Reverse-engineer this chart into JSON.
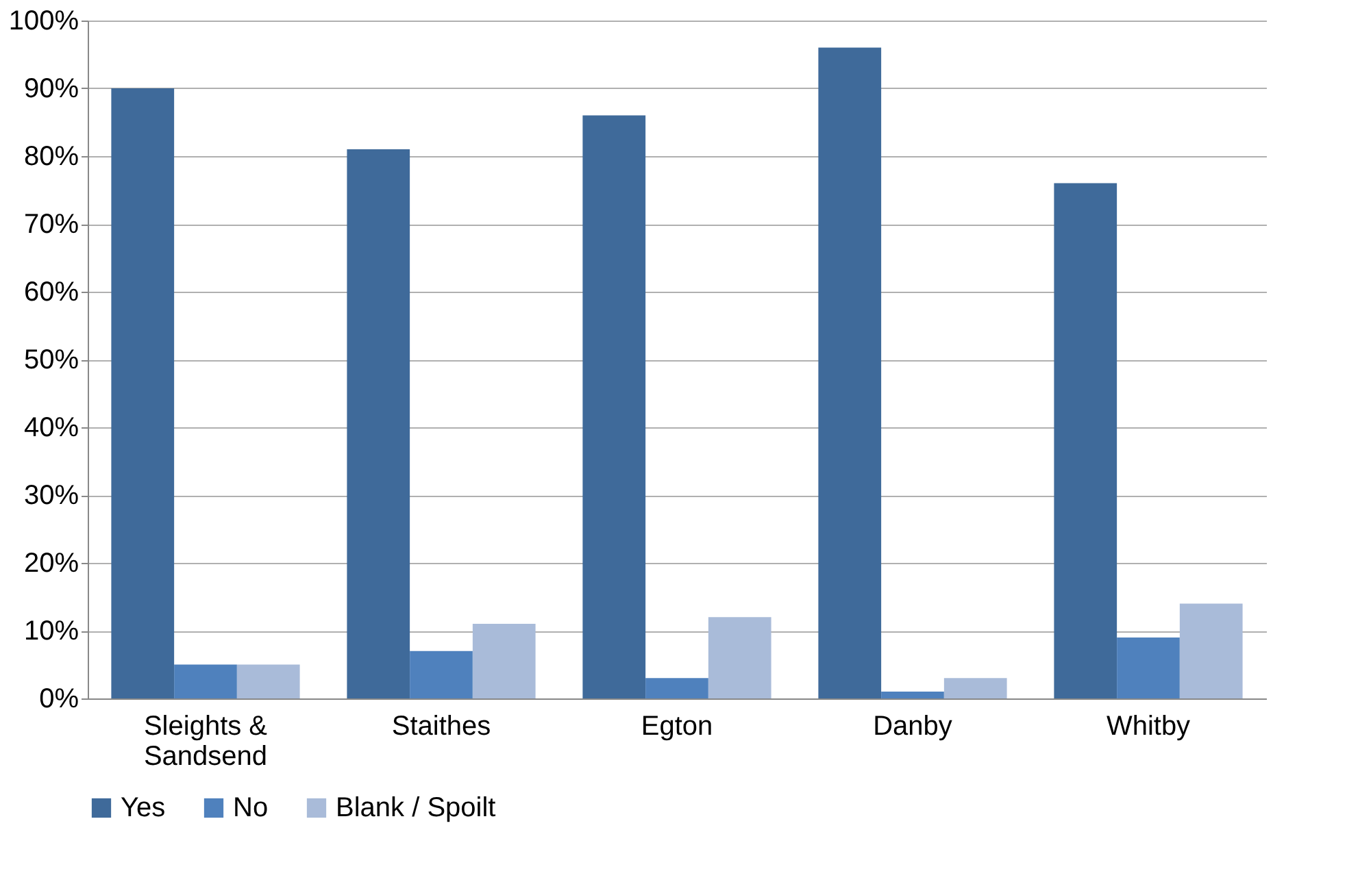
{
  "chart_data": {
    "type": "bar",
    "categories": [
      "Sleights & Sandsend",
      "Staithes",
      "Egton",
      "Danby",
      "Whitby"
    ],
    "series": [
      {
        "name": "Yes",
        "color": "#3f6a9a",
        "values": [
          90,
          81,
          86,
          96,
          76
        ]
      },
      {
        "name": "No",
        "color": "#4f81bd",
        "values": [
          5,
          7,
          3,
          1,
          9
        ]
      },
      {
        "name": "Blank / Spoilt",
        "color": "#a9bbd9",
        "values": [
          5,
          11,
          12,
          3,
          14
        ]
      }
    ],
    "ylim": [
      0,
      100
    ],
    "yticks": [
      {
        "value": 0,
        "label": "0%"
      },
      {
        "value": 10,
        "label": "10%"
      },
      {
        "value": 20,
        "label": "20%"
      },
      {
        "value": 30,
        "label": "30%"
      },
      {
        "value": 40,
        "label": "40%"
      },
      {
        "value": 50,
        "label": "50%"
      },
      {
        "value": 60,
        "label": "60%"
      },
      {
        "value": 70,
        "label": "70%"
      },
      {
        "value": 80,
        "label": "80%"
      },
      {
        "value": 90,
        "label": "90%"
      },
      {
        "value": 100,
        "label": "100%"
      }
    ],
    "grid": "y",
    "legend": "bottom"
  }
}
